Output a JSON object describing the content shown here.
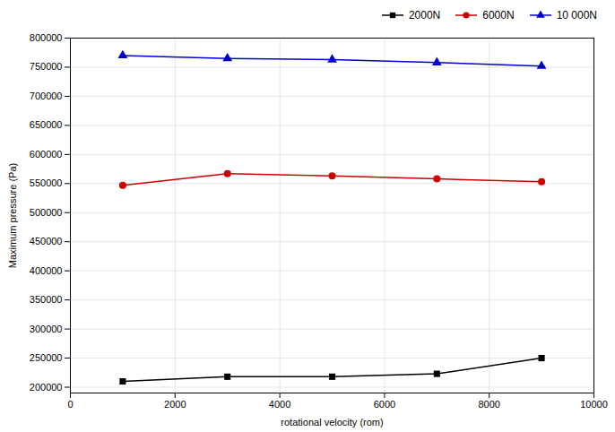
{
  "chart_data": {
    "type": "line",
    "x": [
      1000,
      3000,
      5000,
      7000,
      9000
    ],
    "series": [
      {
        "name": "2000N",
        "color": "#000000",
        "marker": "square",
        "values": [
          210000,
          218000,
          218000,
          223000,
          250000
        ]
      },
      {
        "name": "6000N",
        "color": "#cc0000",
        "marker": "circle",
        "values": [
          547000,
          567000,
          563000,
          558000,
          553000
        ]
      },
      {
        "name": "10 000N",
        "color": "#0000cc",
        "marker": "triangle",
        "values": [
          770000,
          765000,
          763000,
          758000,
          752000
        ]
      }
    ],
    "xlabel": "rotational velocity (rom)",
    "ylabel": "Maximum pressure (Pa)",
    "xlim": [
      0,
      10000
    ],
    "ylim": [
      190000,
      800000
    ],
    "xticks": [
      0,
      2000,
      4000,
      6000,
      8000,
      10000
    ],
    "yticks": [
      200000,
      250000,
      300000,
      350000,
      400000,
      450000,
      500000,
      550000,
      600000,
      650000,
      700000,
      750000,
      800000
    ],
    "grid": true,
    "legend": "upper right"
  }
}
